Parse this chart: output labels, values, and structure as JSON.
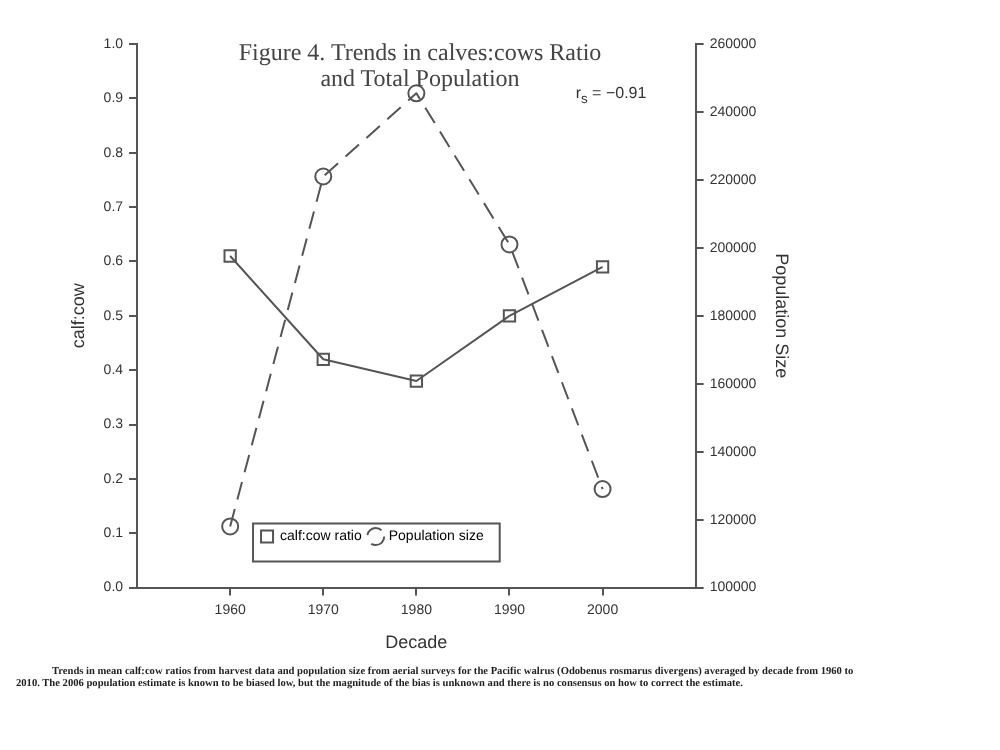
{
  "chart_data": {
    "type": "line",
    "title": "Figure 4. Trends in  calves:cows  Ratio and Total Population",
    "xlabel": "Decade",
    "ylabel": "calf:cow",
    "y2label": "Population Size",
    "x": [
      1960,
      1970,
      1980,
      1990,
      2000
    ],
    "xlim": [
      1950,
      2010
    ],
    "xticks": [
      1960,
      1970,
      1980,
      1990,
      2000
    ],
    "ylim": [
      0,
      1
    ],
    "yticks": [
      {
        "value": 0,
        "label": "0.0"
      },
      0.1,
      0.2,
      0.3,
      0.4,
      0.5,
      0.6,
      0.7,
      0.8,
      0.9,
      {
        "value": 1,
        "label": "1.0"
      }
    ],
    "y2lim": [
      100000,
      260000
    ],
    "y2ticks": [
      100000,
      120000,
      140000,
      160000,
      180000,
      200000,
      220000,
      240000,
      260000
    ],
    "series": [
      {
        "name": "calf:cow ratio",
        "color": "#555555",
        "values": [
          0.61,
          0.42,
          0.38,
          0.5,
          0.59
        ],
        "marker": "square",
        "line_style": "solid"
      },
      {
        "name": "Population size",
        "color": "#555555",
        "values": [
          118000,
          221000,
          245500,
          201000,
          129000
        ],
        "marker": "circle",
        "line_style": "dashed",
        "axis": "y2"
      }
    ],
    "grid": false,
    "legend": "bottom",
    "annotations": [
      "r$_{s}$ = −0.91",
      "Trends in mean calf:cow ratios from harvest data and population size from aerial surveys for the Pacific walrus (Odobenus rosmarus divergens) averaged by decade from 1960 to 2010. The 2006 population estimate is known to be biased low, but the magnitude of the bias is unknown and there is no consensus on how to correct the estimate."
    ]
  }
}
